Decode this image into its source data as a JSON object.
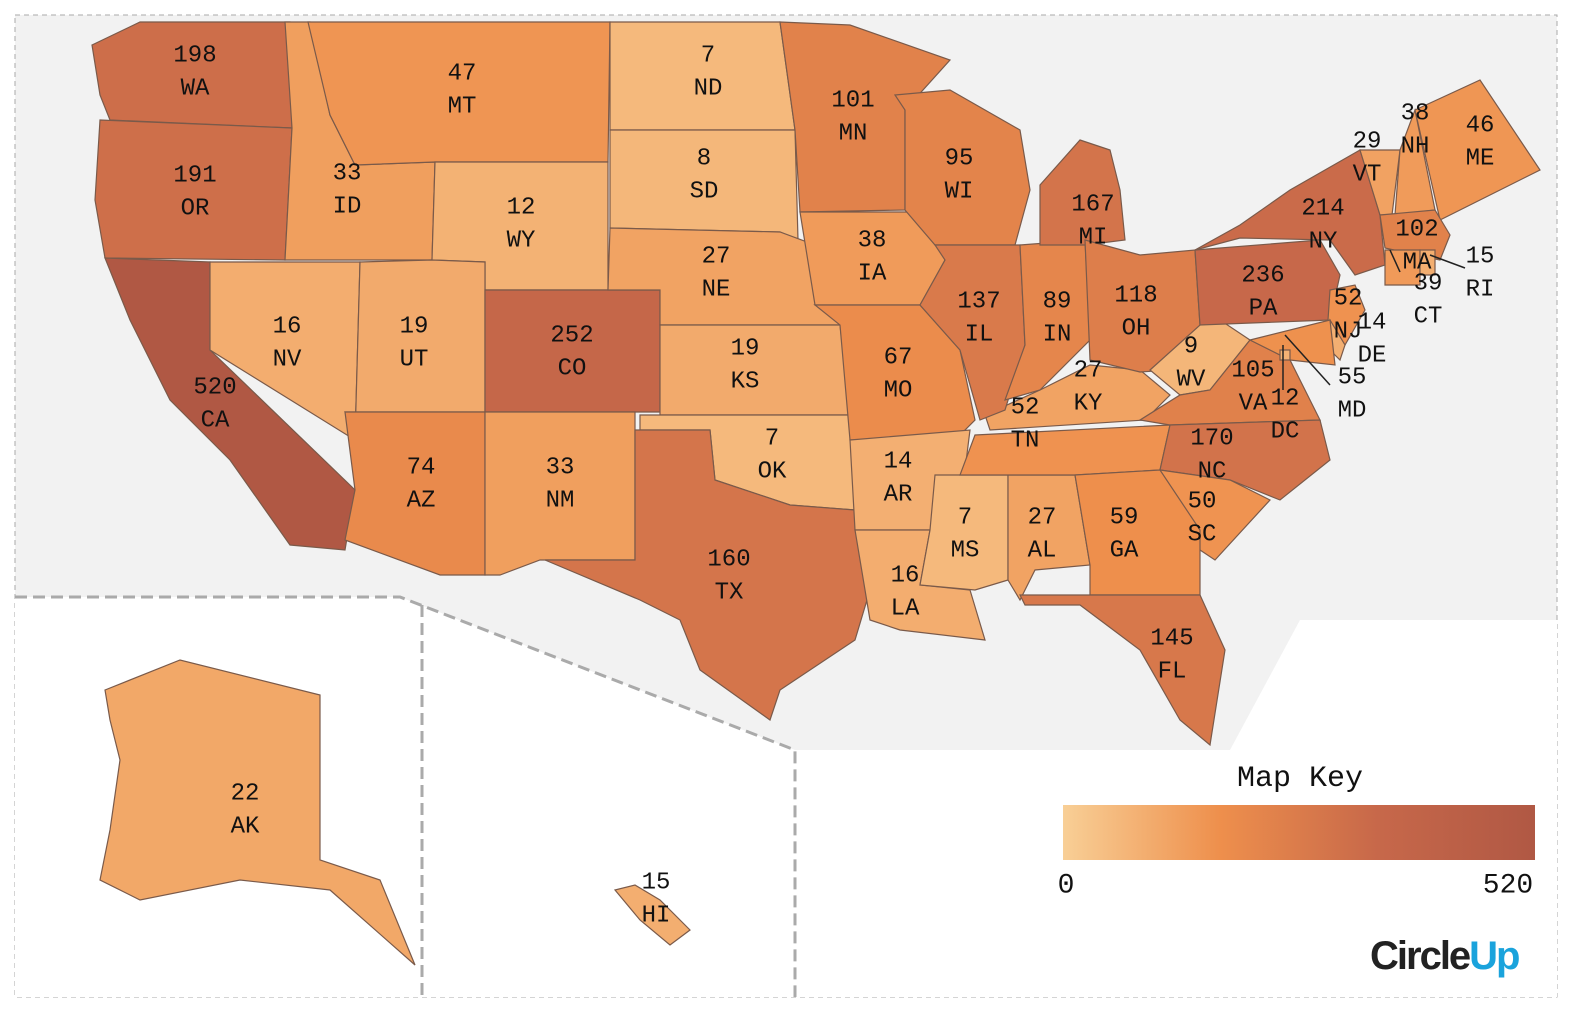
{
  "map": {
    "scale": "sqrt",
    "legend": {
      "title": "Map Key",
      "range": [
        0,
        520
      ],
      "colors": [
        "#f8cf96",
        "#ee8f4c",
        "#c7684a",
        "#b05844"
      ]
    },
    "logo": [
      "Circle",
      "Up"
    ],
    "states": [
      {
        "abbr": "WA",
        "value": 198
      },
      {
        "abbr": "OR",
        "value": 191
      },
      {
        "abbr": "CA",
        "value": 520
      },
      {
        "abbr": "NV",
        "value": 16
      },
      {
        "abbr": "ID",
        "value": 33
      },
      {
        "abbr": "MT",
        "value": 47
      },
      {
        "abbr": "WY",
        "value": 12
      },
      {
        "abbr": "UT",
        "value": 19
      },
      {
        "abbr": "CO",
        "value": 252
      },
      {
        "abbr": "AZ",
        "value": 74
      },
      {
        "abbr": "NM",
        "value": 33
      },
      {
        "abbr": "ND",
        "value": 7
      },
      {
        "abbr": "SD",
        "value": 8
      },
      {
        "abbr": "NE",
        "value": 27
      },
      {
        "abbr": "KS",
        "value": 19
      },
      {
        "abbr": "OK",
        "value": 7
      },
      {
        "abbr": "TX",
        "value": 160
      },
      {
        "abbr": "MN",
        "value": 101
      },
      {
        "abbr": "IA",
        "value": 38
      },
      {
        "abbr": "MO",
        "value": 67
      },
      {
        "abbr": "AR",
        "value": 14
      },
      {
        "abbr": "LA",
        "value": 16
      },
      {
        "abbr": "MS",
        "value": 7
      },
      {
        "abbr": "AL",
        "value": 27
      },
      {
        "abbr": "TN",
        "value": 52
      },
      {
        "abbr": "KY",
        "value": 27
      },
      {
        "abbr": "WI",
        "value": 95
      },
      {
        "abbr": "IL",
        "value": 137
      },
      {
        "abbr": "IN",
        "value": 89
      },
      {
        "abbr": "MI",
        "value": 167
      },
      {
        "abbr": "OH",
        "value": 118
      },
      {
        "abbr": "WV",
        "value": 9
      },
      {
        "abbr": "VA",
        "value": 105
      },
      {
        "abbr": "NC",
        "value": 170
      },
      {
        "abbr": "SC",
        "value": 50
      },
      {
        "abbr": "GA",
        "value": 59
      },
      {
        "abbr": "FL",
        "value": 145
      },
      {
        "abbr": "PA",
        "value": 236
      },
      {
        "abbr": "NY",
        "value": 214
      },
      {
        "abbr": "NJ",
        "value": 52
      },
      {
        "abbr": "DE",
        "value": 14
      },
      {
        "abbr": "MD",
        "value": 55
      },
      {
        "abbr": "DC",
        "value": 12
      },
      {
        "abbr": "VT",
        "value": 29
      },
      {
        "abbr": "NH",
        "value": 38
      },
      {
        "abbr": "ME",
        "value": 46
      },
      {
        "abbr": "MA",
        "value": 102
      },
      {
        "abbr": "CT",
        "value": 39
      },
      {
        "abbr": "RI",
        "value": 15
      },
      {
        "abbr": "AK",
        "value": 22
      },
      {
        "abbr": "HI",
        "value": 15
      }
    ]
  }
}
